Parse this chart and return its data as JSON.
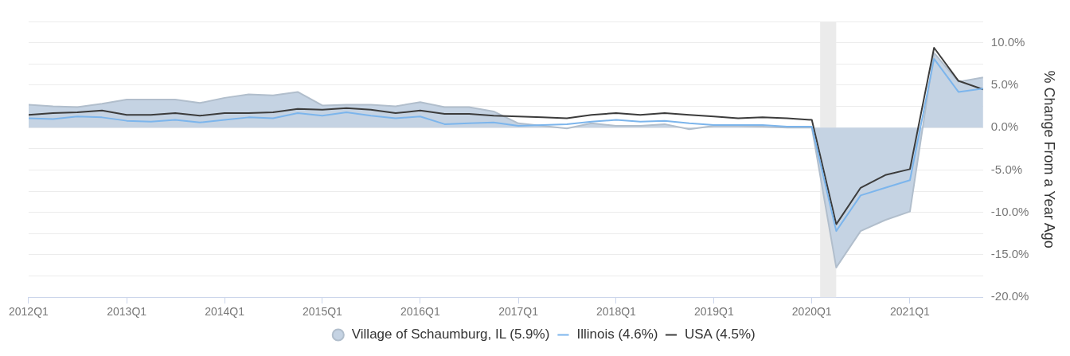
{
  "chart_data": {
    "type": "line",
    "y2label": "% Change From a Year Ago",
    "x": [
      "2012-01",
      "2012-04",
      "2012-07",
      "2012-10",
      "2013-01",
      "2013-04",
      "2013-07",
      "2013-10",
      "2014-01",
      "2014-04",
      "2014-07",
      "2014-10",
      "2015-01",
      "2015-04",
      "2015-07",
      "2015-10",
      "2016-01",
      "2016-04",
      "2016-07",
      "2016-10",
      "2017-01",
      "2017-04",
      "2017-07",
      "2017-10",
      "2018-01",
      "2018-04",
      "2018-07",
      "2018-10",
      "2019-01",
      "2019-04",
      "2019-07",
      "2019-10",
      "2020-01",
      "2020-04",
      "2020-07",
      "2020-10",
      "2021-01",
      "2021-04",
      "2021-07",
      "2021-10"
    ],
    "series": [
      {
        "name": "Village of Schaumburg, IL (5.9%)",
        "type": "area",
        "color": "#c5d3e3",
        "values": [
          2.7,
          2.5,
          2.4,
          2.8,
          3.3,
          3.3,
          3.3,
          2.9,
          3.5,
          3.9,
          3.8,
          4.2,
          2.6,
          2.7,
          2.7,
          2.5,
          3.0,
          2.4,
          2.4,
          1.9,
          0.5,
          0.2,
          -0.1,
          0.5,
          0.2,
          0.2,
          0.4,
          -0.2,
          0.2,
          0.2,
          0.1,
          0.0,
          0.0,
          -16.5,
          -12.2,
          -10.9,
          -9.9,
          8.8,
          5.4,
          5.9
        ]
      },
      {
        "name": "Illinois (4.6%)",
        "color": "#7cb5ec",
        "values": [
          1.1,
          1.0,
          1.3,
          1.2,
          0.8,
          0.7,
          0.9,
          0.6,
          0.9,
          1.2,
          1.1,
          1.7,
          1.4,
          1.8,
          1.4,
          1.1,
          1.3,
          0.4,
          0.5,
          0.6,
          0.2,
          0.3,
          0.4,
          0.7,
          0.9,
          0.7,
          0.8,
          0.5,
          0.3,
          0.3,
          0.3,
          0.1,
          0.1,
          -12.2,
          -8.0,
          -7.1,
          -6.2,
          8.1,
          4.2,
          4.6
        ]
      },
      {
        "name": "USA (4.5%)",
        "color": "#3c3c3c",
        "values": [
          1.5,
          1.7,
          1.8,
          2.0,
          1.5,
          1.5,
          1.7,
          1.4,
          1.7,
          1.7,
          1.8,
          2.2,
          2.1,
          2.3,
          2.1,
          1.7,
          2.0,
          1.6,
          1.6,
          1.4,
          1.3,
          1.2,
          1.1,
          1.5,
          1.7,
          1.5,
          1.7,
          1.5,
          1.3,
          1.1,
          1.2,
          1.1,
          0.9,
          -11.4,
          -7.1,
          -5.6,
          -4.9,
          9.4,
          5.5,
          4.5
        ]
      }
    ],
    "xlim": [
      "2012-01",
      "2021-10"
    ],
    "xticks": [
      {
        "value": "2012-01",
        "label": "2012Q1"
      },
      {
        "value": "2013-01",
        "label": "2013Q1"
      },
      {
        "value": "2014-01",
        "label": "2014Q1"
      },
      {
        "value": "2015-01",
        "label": "2015Q1"
      },
      {
        "value": "2016-01",
        "label": "2016Q1"
      },
      {
        "value": "2017-01",
        "label": "2017Q1"
      },
      {
        "value": "2018-01",
        "label": "2018Q1"
      },
      {
        "value": "2019-01",
        "label": "2019Q1"
      },
      {
        "value": "2020-01",
        "label": "2020Q1"
      },
      {
        "value": "2021-01",
        "label": "2021Q1"
      }
    ],
    "ylim": [
      -20,
      12.5
    ],
    "yticks": [
      {
        "value": -20,
        "label": "-20.0%"
      },
      {
        "value": -17.5,
        "label": null
      },
      {
        "value": -15,
        "label": "-15.0%"
      },
      {
        "value": -12.5,
        "label": null
      },
      {
        "value": -10,
        "label": "-10.0%"
      },
      {
        "value": -7.5,
        "label": null
      },
      {
        "value": -5,
        "label": "-5.0%"
      },
      {
        "value": -2.5,
        "label": null
      },
      {
        "value": 0,
        "label": "0.0%"
      },
      {
        "value": 2.5,
        "label": null
      },
      {
        "value": 5,
        "label": "5.0%"
      },
      {
        "value": 7.5,
        "label": null
      },
      {
        "value": 10,
        "label": "10.0%"
      },
      {
        "value": 12.5,
        "label": null
      }
    ],
    "bands": [
      {
        "axis": "x",
        "from": "2020-02",
        "to": "2020-04",
        "color": "#ebebeb"
      }
    ],
    "grid": "y",
    "legend": "bottom"
  }
}
